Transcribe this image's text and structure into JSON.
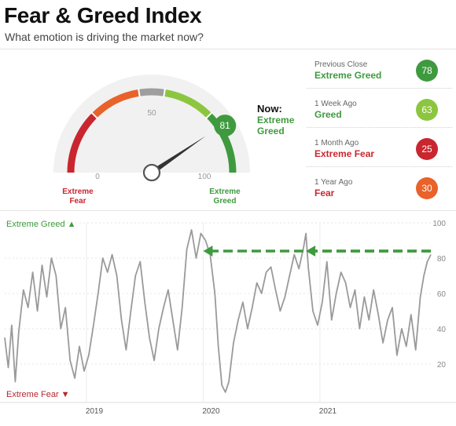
{
  "header": {
    "title": "Fear & Greed Index",
    "subtitle": "What emotion is driving the market now?"
  },
  "gauge": {
    "value": 81,
    "now_label": "Now:",
    "now_status": "Extreme Greed",
    "tick_labels": [
      {
        "value": 0,
        "label": "0"
      },
      {
        "value": 50,
        "label": "50"
      },
      {
        "value": 100,
        "label": "100"
      }
    ],
    "left_label_line1": "Extreme",
    "left_label_line2": "Fear",
    "right_label_line1": "Extreme",
    "right_label_line2": "Greed",
    "colors": {
      "extreme_fear": "#c9262f",
      "fear": "#e8622a",
      "neutral": "#9e9e9e",
      "greed": "#8cc63f",
      "extreme_greed": "#3f9a3f"
    }
  },
  "readings": [
    {
      "label": "Previous Close",
      "status": "Extreme Greed",
      "value": "78",
      "color": "#3f9a3f",
      "text_color": "#3f9a3f"
    },
    {
      "label": "1 Week Ago",
      "status": "Greed",
      "value": "63",
      "color": "#8cc63f",
      "text_color": "#3f9a3f"
    },
    {
      "label": "1 Month Ago",
      "status": "Extreme Fear",
      "value": "25",
      "color": "#c9262f",
      "text_color": "#c9262f"
    },
    {
      "label": "1 Year Ago",
      "status": "Fear",
      "value": "30",
      "color": "#e8622a",
      "text_color": "#c9262f"
    }
  ],
  "chart_data": {
    "type": "line",
    "title": "",
    "top_band_label": "Extreme Greed",
    "bottom_band_label": "Extreme Fear",
    "ylim": [
      0,
      100
    ],
    "yticks": [
      20,
      40,
      60,
      80,
      100
    ],
    "xlim": [
      2018.3,
      2021.95
    ],
    "xticks": [
      {
        "x": 2019.0,
        "label": "2019"
      },
      {
        "x": 2020.0,
        "label": "2020"
      },
      {
        "x": 2021.0,
        "label": "2021"
      }
    ],
    "grid": true,
    "series": [
      {
        "color": "#9a9a9a",
        "points": [
          [
            2018.3,
            35
          ],
          [
            2018.33,
            18
          ],
          [
            2018.36,
            42
          ],
          [
            2018.39,
            10
          ],
          [
            2018.42,
            38
          ],
          [
            2018.46,
            62
          ],
          [
            2018.5,
            52
          ],
          [
            2018.54,
            72
          ],
          [
            2018.58,
            50
          ],
          [
            2018.62,
            76
          ],
          [
            2018.66,
            58
          ],
          [
            2018.7,
            80
          ],
          [
            2018.74,
            70
          ],
          [
            2018.78,
            40
          ],
          [
            2018.82,
            52
          ],
          [
            2018.86,
            22
          ],
          [
            2018.9,
            12
          ],
          [
            2018.94,
            30
          ],
          [
            2018.98,
            16
          ],
          [
            2019.02,
            25
          ],
          [
            2019.06,
            42
          ],
          [
            2019.1,
            60
          ],
          [
            2019.14,
            80
          ],
          [
            2019.18,
            72
          ],
          [
            2019.22,
            82
          ],
          [
            2019.26,
            70
          ],
          [
            2019.3,
            45
          ],
          [
            2019.34,
            28
          ],
          [
            2019.38,
            50
          ],
          [
            2019.42,
            70
          ],
          [
            2019.46,
            78
          ],
          [
            2019.5,
            55
          ],
          [
            2019.54,
            35
          ],
          [
            2019.58,
            22
          ],
          [
            2019.62,
            40
          ],
          [
            2019.66,
            52
          ],
          [
            2019.7,
            62
          ],
          [
            2019.74,
            45
          ],
          [
            2019.78,
            28
          ],
          [
            2019.82,
            52
          ],
          [
            2019.86,
            85
          ],
          [
            2019.9,
            96
          ],
          [
            2019.94,
            80
          ],
          [
            2019.98,
            94
          ],
          [
            2020.02,
            90
          ],
          [
            2020.06,
            82
          ],
          [
            2020.1,
            60
          ],
          [
            2020.13,
            30
          ],
          [
            2020.16,
            8
          ],
          [
            2020.19,
            4
          ],
          [
            2020.22,
            10
          ],
          [
            2020.26,
            32
          ],
          [
            2020.3,
            45
          ],
          [
            2020.34,
            55
          ],
          [
            2020.38,
            40
          ],
          [
            2020.42,
            52
          ],
          [
            2020.46,
            66
          ],
          [
            2020.5,
            60
          ],
          [
            2020.54,
            72
          ],
          [
            2020.58,
            75
          ],
          [
            2020.62,
            62
          ],
          [
            2020.66,
            50
          ],
          [
            2020.7,
            58
          ],
          [
            2020.74,
            70
          ],
          [
            2020.78,
            82
          ],
          [
            2020.82,
            74
          ],
          [
            2020.86,
            86
          ],
          [
            2020.88,
            94
          ],
          [
            2020.9,
            75
          ],
          [
            2020.94,
            50
          ],
          [
            2020.98,
            42
          ],
          [
            2021.02,
            55
          ],
          [
            2021.06,
            78
          ],
          [
            2021.1,
            45
          ],
          [
            2021.14,
            60
          ],
          [
            2021.18,
            72
          ],
          [
            2021.22,
            66
          ],
          [
            2021.26,
            52
          ],
          [
            2021.3,
            62
          ],
          [
            2021.34,
            40
          ],
          [
            2021.38,
            58
          ],
          [
            2021.42,
            45
          ],
          [
            2021.46,
            62
          ],
          [
            2021.5,
            48
          ],
          [
            2021.54,
            32
          ],
          [
            2021.58,
            45
          ],
          [
            2021.62,
            52
          ],
          [
            2021.66,
            25
          ],
          [
            2021.7,
            40
          ],
          [
            2021.74,
            30
          ],
          [
            2021.78,
            48
          ],
          [
            2021.82,
            28
          ],
          [
            2021.86,
            58
          ],
          [
            2021.89,
            70
          ],
          [
            2021.92,
            78
          ],
          [
            2021.95,
            82
          ]
        ]
      }
    ],
    "annotation": {
      "style": "dashed-arrow",
      "color": "#3f9a3f",
      "y": 84,
      "segments": [
        {
          "x_start": 2021.95,
          "x_end": 2020.0
        },
        {
          "x_start": 2021.95,
          "x_end": 2020.88
        }
      ]
    }
  }
}
